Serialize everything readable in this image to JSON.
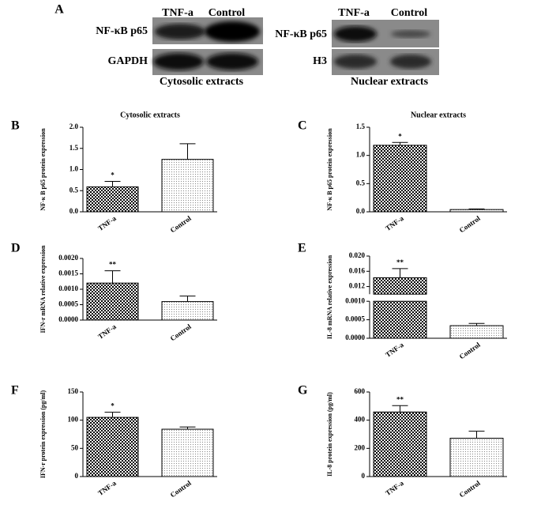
{
  "blots": {
    "panel": "A",
    "left": {
      "columns": [
        "TNF-a",
        "Control"
      ],
      "rows": [
        "NF-κB p65",
        "GAPDH"
      ],
      "caption": "Cytosolic extracts"
    },
    "right": {
      "columns": [
        "TNF-a",
        "Control"
      ],
      "rows": [
        "NF-κB p65",
        "H3"
      ],
      "caption": "Nuclear extracts"
    }
  },
  "chart_data": [
    {
      "type": "bar",
      "panel": "B",
      "title": "Cytosolic extracts",
      "ylabel": "NF-κ B p65 protein expression",
      "categories": [
        "TNF-a",
        "Control"
      ],
      "values": [
        0.59,
        1.24
      ],
      "errors": [
        0.13,
        0.37
      ],
      "significance": "*",
      "ylim": [
        0,
        2
      ],
      "yticks": [
        {
          "value": 0,
          "label": "0.0"
        },
        0.5,
        {
          "value": 1,
          "label": "1.0"
        },
        1.5,
        {
          "value": 2,
          "label": "2.0"
        }
      ]
    },
    {
      "type": "bar",
      "panel": "C",
      "title": "Nuclear extracts",
      "ylabel": "NF-κ B p65 protein expression",
      "categories": [
        "TNF-a",
        "Control"
      ],
      "values": [
        1.18,
        0.04
      ],
      "errors": [
        0.05,
        0.01
      ],
      "significance": "*",
      "ylim": [
        0,
        1.5
      ],
      "yticks": [
        {
          "value": 0,
          "label": "0.0"
        },
        0.5,
        {
          "value": 1,
          "label": "1.0"
        },
        1.5
      ]
    },
    {
      "type": "bar",
      "panel": "D",
      "ylabel": "IFN-r mRNA relative expression",
      "categories": [
        "TNF-a",
        "Control"
      ],
      "values": [
        0.0012,
        0.0006
      ],
      "errors": [
        0.0004,
        0.00018
      ],
      "significance": "**",
      "ylim": [
        0,
        0.002
      ],
      "yticks": [
        {
          "value": 0,
          "label": "0.0000"
        },
        {
          "value": 0.0005,
          "label": "0.0005"
        },
        {
          "value": 0.001,
          "label": "0.0010"
        },
        {
          "value": 0.0015,
          "label": "0.0015"
        },
        {
          "value": 0.002,
          "label": "0.0020"
        }
      ]
    },
    {
      "type": "bar",
      "panel": "E",
      "ylabel": "IL-8 mRNA relative expression",
      "categories": [
        "TNF-a",
        "Control"
      ],
      "values": [
        0.0143,
        0.00034
      ],
      "errors": [
        0.0024,
        6e-05
      ],
      "significance": "**",
      "ylim": [
        0,
        0.02
      ],
      "ybreak": [
        0.001,
        0.01
      ],
      "yticks": [
        {
          "value": 0,
          "label": "0.0000"
        },
        {
          "value": 0.0005,
          "label": "0.0005"
        },
        {
          "value": 0.001,
          "label": "0.0010"
        },
        0.012,
        0.016,
        {
          "value": 0.02,
          "label": "0.020"
        }
      ]
    },
    {
      "type": "bar",
      "panel": "F",
      "ylabel": "IFN-r protein expression (pg/ml)",
      "categories": [
        "TNF-a",
        "Control"
      ],
      "values": [
        105,
        84
      ],
      "errors": [
        9,
        4
      ],
      "significance": "*",
      "ylim": [
        0,
        150
      ],
      "yticks": [
        0,
        50,
        100,
        150
      ]
    },
    {
      "type": "bar",
      "panel": "G",
      "ylabel": "IL-8 protein expression (pg/ml)",
      "categories": [
        "TNF-a",
        "Control"
      ],
      "values": [
        458,
        272
      ],
      "errors": [
        45,
        50
      ],
      "significance": "**",
      "ylim": [
        0,
        600
      ],
      "yticks": [
        0,
        200,
        400,
        600
      ]
    }
  ]
}
